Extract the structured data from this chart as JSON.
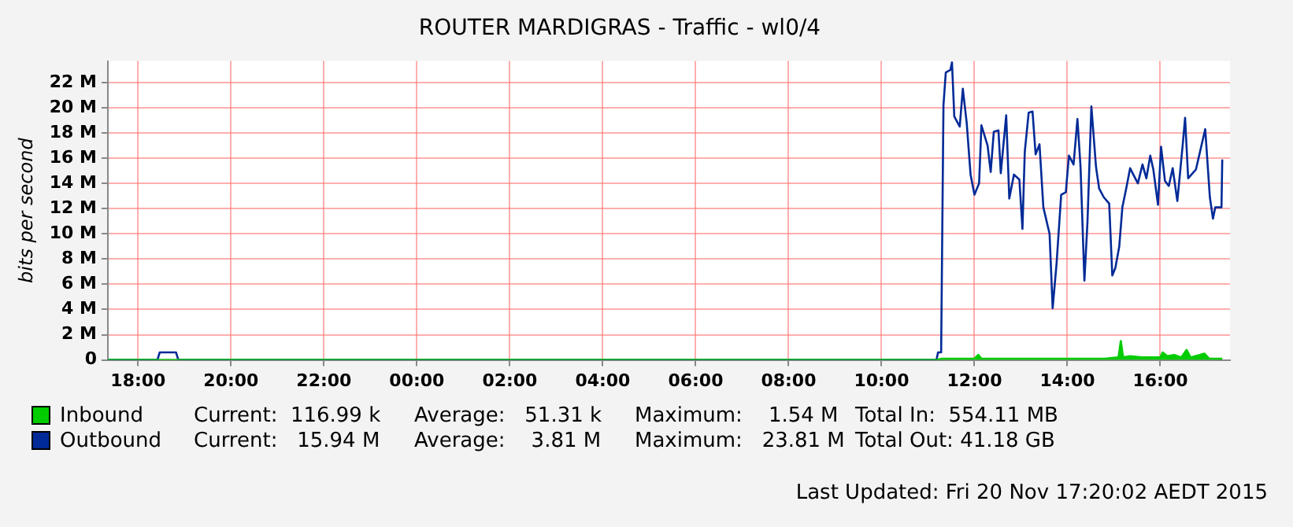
{
  "chart_data": {
    "type": "line",
    "title": "ROUTER MARDIGRAS - Traffic - wl0/4",
    "ylabel": "bits per second",
    "xlim": [
      "2015-11-19T17:21",
      "2015-11-20T17:30"
    ],
    "ylim": [
      0,
      23.7
    ],
    "xticks": [
      {
        "value": "2015-11-19T18:00",
        "label": "18:00"
      },
      {
        "value": "2015-11-19T20:00",
        "label": "20:00"
      },
      {
        "value": "2015-11-19T22:00",
        "label": "22:00"
      },
      {
        "value": "2015-11-20T00:00",
        "label": "00:00"
      },
      {
        "value": "2015-11-20T02:00",
        "label": "02:00"
      },
      {
        "value": "2015-11-20T04:00",
        "label": "04:00"
      },
      {
        "value": "2015-11-20T06:00",
        "label": "06:00"
      },
      {
        "value": "2015-11-20T08:00",
        "label": "08:00"
      },
      {
        "value": "2015-11-20T10:00",
        "label": "10:00"
      },
      {
        "value": "2015-11-20T12:00",
        "label": "12:00"
      },
      {
        "value": "2015-11-20T14:00",
        "label": "14:00"
      },
      {
        "value": "2015-11-20T16:00",
        "label": "16:00"
      }
    ],
    "yticks": [
      0,
      {
        "value": 2,
        "label": "2 M"
      },
      {
        "value": 4,
        "label": "4 M"
      },
      {
        "value": 6,
        "label": "6 M"
      },
      {
        "value": 8,
        "label": "8 M"
      },
      {
        "value": 10,
        "label": "10 M"
      },
      {
        "value": 12,
        "label": "12 M"
      },
      {
        "value": 14,
        "label": "14 M"
      },
      {
        "value": 16,
        "label": "16 M"
      },
      {
        "value": 18,
        "label": "18 M"
      },
      {
        "value": 20,
        "label": "20 M"
      },
      {
        "value": 22,
        "label": "22 M"
      }
    ],
    "grid": true,
    "legend": "bottom",
    "marker": "none",
    "series": [
      {
        "name": "Inbound",
        "type": "area",
        "color": "#00cc00",
        "x": [
          "2015-11-19T17:21",
          "2015-11-20T11:11",
          "2015-11-20T11:18",
          "2015-11-20T12:00",
          "2015-11-20T12:05",
          "2015-11-20T12:09",
          "2015-11-20T13:00",
          "2015-11-20T14:00",
          "2015-11-20T14:48",
          "2015-11-20T15:06",
          "2015-11-20T15:09",
          "2015-11-20T15:12",
          "2015-11-20T15:21",
          "2015-11-20T15:36",
          "2015-11-20T16:00",
          "2015-11-20T16:03",
          "2015-11-20T16:09",
          "2015-11-20T16:18",
          "2015-11-20T16:27",
          "2015-11-20T16:34",
          "2015-11-20T16:39",
          "2015-11-20T16:57",
          "2015-11-20T17:03",
          "2015-11-20T17:20"
        ],
        "values": [
          0,
          0,
          0.1,
          0.1,
          0.4,
          0.1,
          0.1,
          0.1,
          0.1,
          0.2,
          1.5,
          0.2,
          0.3,
          0.2,
          0.2,
          0.6,
          0.3,
          0.4,
          0.2,
          0.8,
          0.2,
          0.5,
          0.1,
          0.1
        ]
      },
      {
        "name": "Outbound",
        "type": "line",
        "color": "#002a97",
        "x": [
          "2015-11-19T17:21",
          "2015-11-19T18:25",
          "2015-11-19T18:28",
          "2015-11-19T18:49",
          "2015-11-19T18:52",
          "2015-11-20T11:11",
          "2015-11-20T11:13",
          "2015-11-20T11:17",
          "2015-11-20T11:20",
          "2015-11-20T11:23",
          "2015-11-20T11:29",
          "2015-11-20T11:31",
          "2015-11-20T11:34",
          "2015-11-20T11:41",
          "2015-11-20T11:45",
          "2015-11-20T11:50",
          "2015-11-20T11:55",
          "2015-11-20T12:00",
          "2015-11-20T12:06",
          "2015-11-20T12:09",
          "2015-11-20T12:17",
          "2015-11-20T12:21",
          "2015-11-20T12:25",
          "2015-11-20T12:31",
          "2015-11-20T12:34",
          "2015-11-20T12:41",
          "2015-11-20T12:45",
          "2015-11-20T12:51",
          "2015-11-20T12:58",
          "2015-11-20T13:02",
          "2015-11-20T13:05",
          "2015-11-20T13:10",
          "2015-11-20T13:15",
          "2015-11-20T13:19",
          "2015-11-20T13:24",
          "2015-11-20T13:29",
          "2015-11-20T13:37",
          "2015-11-20T13:41",
          "2015-11-20T13:46",
          "2015-11-20T13:52",
          "2015-11-20T13:58",
          "2015-11-20T14:02",
          "2015-11-20T14:08",
          "2015-11-20T14:13",
          "2015-11-20T14:17",
          "2015-11-20T14:22",
          "2015-11-20T14:26",
          "2015-11-20T14:31",
          "2015-11-20T14:37",
          "2015-11-20T14:41",
          "2015-11-20T14:47",
          "2015-11-20T14:54",
          "2015-11-20T14:58",
          "2015-11-20T15:02",
          "2015-11-20T15:07",
          "2015-11-20T15:11",
          "2015-11-20T15:16",
          "2015-11-20T15:21",
          "2015-11-20T15:31",
          "2015-11-20T15:37",
          "2015-11-20T15:42",
          "2015-11-20T15:47",
          "2015-11-20T15:51",
          "2015-11-20T15:57",
          "2015-11-20T16:01",
          "2015-11-20T16:06",
          "2015-11-20T16:11",
          "2015-11-20T16:16",
          "2015-11-20T16:22",
          "2015-11-20T16:29",
          "2015-11-20T16:32",
          "2015-11-20T16:36",
          "2015-11-20T16:46",
          "2015-11-20T16:55",
          "2015-11-20T16:58",
          "2015-11-20T17:04",
          "2015-11-20T17:08",
          "2015-11-20T17:11",
          "2015-11-20T17:19",
          "2015-11-20T17:20"
        ],
        "values": [
          0,
          0,
          0.6,
          0.6,
          0,
          0,
          0.6,
          0.6,
          20.2,
          22.8,
          23.0,
          23.6,
          19.3,
          18.5,
          21.5,
          18.8,
          14.7,
          13.1,
          14.0,
          18.6,
          17.0,
          14.9,
          18.1,
          18.2,
          14.8,
          19.4,
          12.8,
          14.7,
          14.3,
          10.4,
          16.5,
          19.6,
          19.7,
          16.3,
          17.1,
          12.1,
          10.0,
          4.1,
          7.6,
          13.1,
          13.3,
          16.2,
          15.5,
          19.1,
          15.3,
          6.3,
          11.0,
          20.1,
          15.3,
          13.6,
          12.9,
          12.4,
          6.7,
          7.3,
          9.0,
          12.1,
          13.6,
          15.2,
          14.0,
          15.5,
          14.4,
          16.2,
          15.1,
          12.3,
          16.9,
          14.2,
          13.8,
          15.2,
          12.6,
          17.1,
          19.2,
          14.4,
          15.1,
          17.5,
          18.3,
          12.9,
          11.2,
          12.1,
          12.1,
          15.9
        ]
      }
    ],
    "annotations": [
      "Current:  116.99 k",
      "Average:   51.31 k",
      "Maximum:    1.54 M",
      "Total In:  554.11 MB",
      "Current:   15.94 M",
      "Average:    3.81 M",
      "Maximum:   23.81 M",
      "Total Out: 41.18 GB",
      "Last Updated: Fri 20 Nov 17:20:02 AEDT 2015"
    ]
  }
}
